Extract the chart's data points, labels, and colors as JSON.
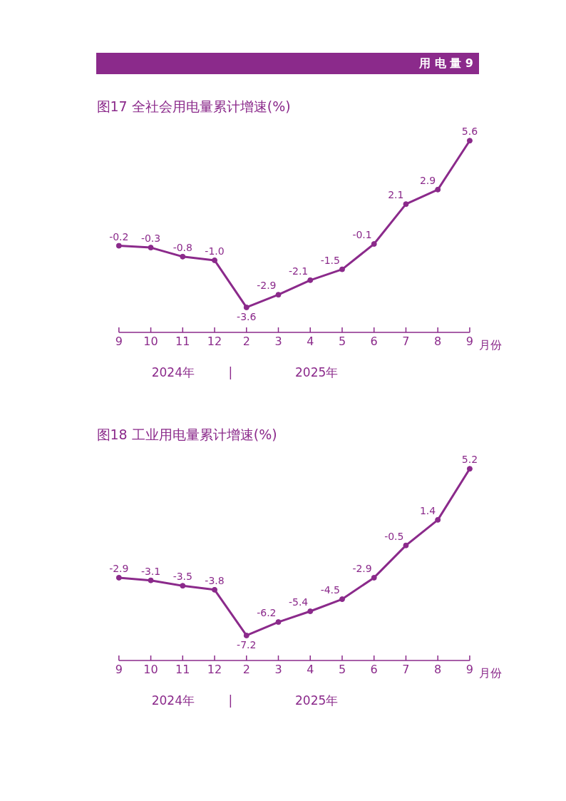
{
  "chart_data": [
    {
      "type": "line",
      "title": "图17  全社会用电量累计增速(%)",
      "xlabel": "月份",
      "categories": [
        "9",
        "10",
        "11",
        "12",
        "2",
        "3",
        "4",
        "5",
        "6",
        "7",
        "8",
        "9"
      ],
      "series": [
        {
          "color": "#8b2a8b",
          "values": [
            -0.2,
            -0.3,
            -0.8,
            -1.0,
            -3.6,
            -2.9,
            -2.1,
            -1.5,
            -0.1,
            2.1,
            2.9,
            5.6
          ],
          "value_labels": [
            "-0.2",
            "-0.3",
            "-0.8",
            "-1.0",
            "-3.6",
            "-2.9",
            "-2.1",
            "-1.5",
            "-0.1",
            "2.1",
            "2.9",
            "5.6"
          ]
        }
      ],
      "marker": "circle",
      "annotations": [
        "用 电 量 9",
        "2024年",
        "|",
        "2025年"
      ]
    },
    {
      "type": "line",
      "title": "图18  工业用电量累计增速(%)",
      "xlabel": "月份",
      "categories": [
        "9",
        "10",
        "11",
        "12",
        "2",
        "3",
        "4",
        "5",
        "6",
        "7",
        "8",
        "9"
      ],
      "series": [
        {
          "color": "#8b2a8b",
          "values": [
            -2.9,
            -3.1,
            -3.5,
            -3.8,
            -7.2,
            -6.2,
            -5.4,
            -4.5,
            -2.9,
            -0.5,
            1.4,
            5.2
          ],
          "value_labels": [
            "-2.9",
            "-3.1",
            "-3.5",
            "-3.8",
            "-7.2",
            "-6.2",
            "-5.4",
            "-4.5",
            "-2.9",
            "-0.5",
            "1.4",
            "5.2"
          ]
        }
      ],
      "marker": "circle",
      "annotations": [
        "2024年",
        "|",
        "2025年"
      ]
    }
  ]
}
